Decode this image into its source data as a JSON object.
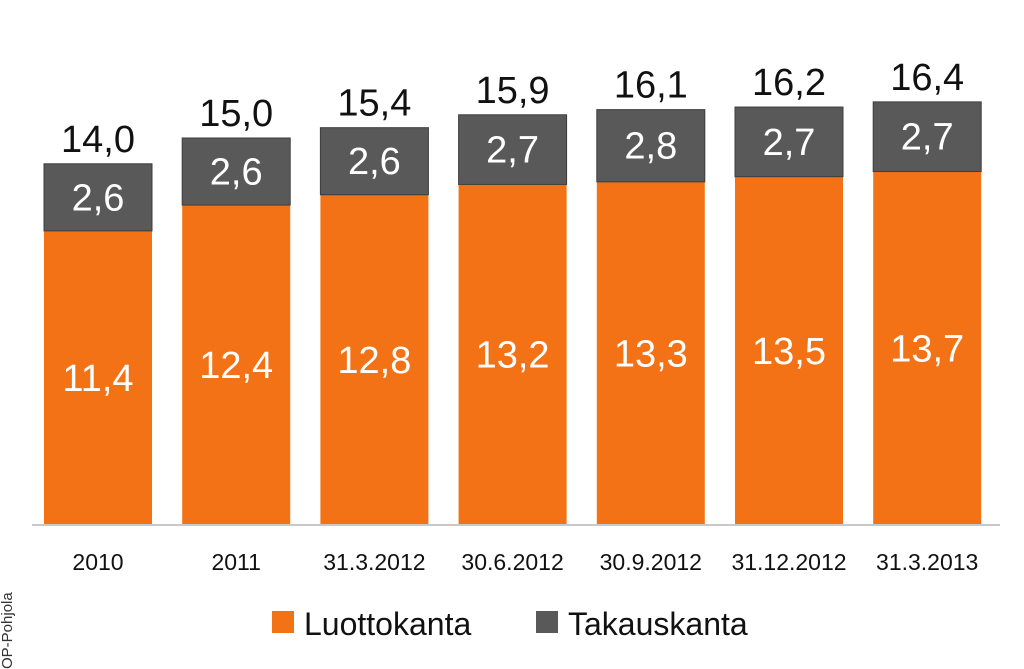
{
  "chart_data": {
    "type": "bar",
    "stacked": true,
    "categories": [
      "2010",
      "2011",
      "31.3.2012",
      "30.6.2012",
      "30.9.2012",
      "31.12.2012",
      "31.3.2013"
    ],
    "series": [
      {
        "name": "Luottokanta",
        "color": "#f47216",
        "values": [
          11.4,
          12.4,
          12.8,
          13.2,
          13.3,
          13.5,
          13.7
        ],
        "labels": [
          "11,4",
          "12,4",
          "12,8",
          "13,2",
          "13,3",
          "13,5",
          "13,7"
        ]
      },
      {
        "name": "Takauskanta",
        "color": "#595959",
        "values": [
          2.6,
          2.6,
          2.6,
          2.7,
          2.8,
          2.7,
          2.7
        ],
        "labels": [
          "2,6",
          "2,6",
          "2,6",
          "2,7",
          "2,8",
          "2,7",
          "2,7"
        ]
      }
    ],
    "totals": [
      "14,0",
      "15,0",
      "15,4",
      "15,9",
      "16,1",
      "16,2",
      "16,4"
    ],
    "title": "",
    "xlabel": "",
    "ylabel": "",
    "ylim": [
      0,
      17
    ],
    "grid": false,
    "legend_position": "bottom"
  },
  "side_label": "OP-Pohjola"
}
